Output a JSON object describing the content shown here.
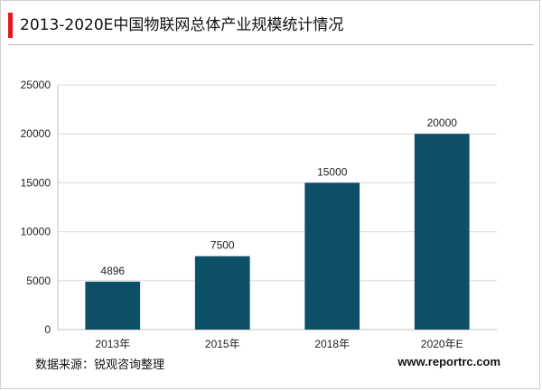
{
  "title": "2013-2020E中国物联网总体产业规模统计情况",
  "source": "数据来源：锐观咨询整理",
  "website": "www.reportrc.com",
  "colors": {
    "bar": "#0d4f66",
    "accent": "#e8161b",
    "grid": "#d9d9d9"
  },
  "chart_data": {
    "type": "bar",
    "categories": [
      "2013年",
      "2015年",
      "2018年",
      "2020年E"
    ],
    "values": [
      4896,
      7500,
      15000,
      20000
    ],
    "value_labels": [
      "4896",
      "7500",
      "15000",
      "20000"
    ],
    "yticks": [
      "0",
      "5000",
      "10000",
      "15000",
      "20000",
      "25000"
    ],
    "ylim": [
      0,
      25000
    ],
    "grid": true,
    "legend": "none"
  }
}
